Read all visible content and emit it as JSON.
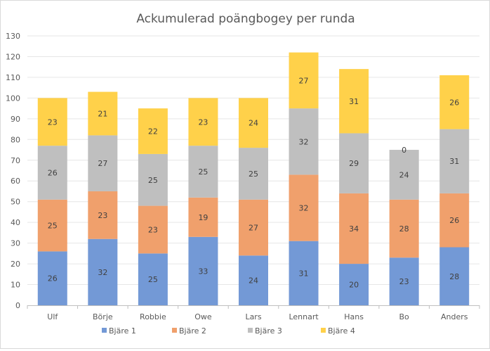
{
  "chart_data": {
    "type": "bar",
    "stacked": true,
    "title": "Ackumulerad poängbogey per runda",
    "xlabel": "",
    "ylabel": "",
    "ylim": [
      0,
      130
    ],
    "yticks": [
      0,
      10,
      20,
      30,
      40,
      50,
      60,
      70,
      80,
      90,
      100,
      110,
      120,
      130
    ],
    "grid": true,
    "legend": "bottom",
    "categories": [
      "Ulf",
      "Börje",
      "Robbie",
      "Owe",
      "Lars",
      "Lennart",
      "Hans",
      "Bo",
      "Anders"
    ],
    "series": [
      {
        "name": "Bjäre 1",
        "color": "#7399d6",
        "values": [
          26,
          32,
          25,
          33,
          24,
          31,
          20,
          23,
          28
        ]
      },
      {
        "name": "Bjäre 2",
        "color": "#f0a06c",
        "values": [
          25,
          23,
          23,
          19,
          27,
          32,
          34,
          28,
          26
        ]
      },
      {
        "name": "Bjäre 3",
        "color": "#bfbfbf",
        "values": [
          26,
          27,
          25,
          25,
          25,
          32,
          29,
          24,
          31
        ]
      },
      {
        "name": "Bjäre 4",
        "color": "#ffd14a",
        "values": [
          23,
          21,
          22,
          23,
          24,
          27,
          31,
          0,
          26
        ]
      }
    ]
  }
}
